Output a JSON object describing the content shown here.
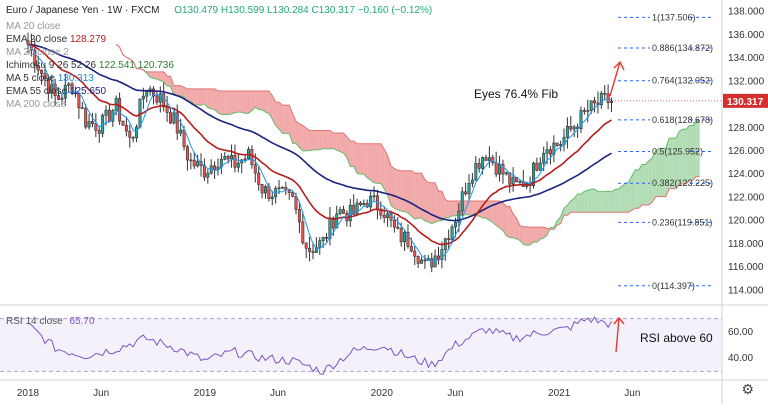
{
  "header": {
    "symbol": "Euro / Japanese Yen · 1W · FXCM",
    "ohlc": "O130.479 H130.599 L130.284 C130.317 −0.160 (−0.12%)",
    "indicators": [
      {
        "label": "MA 20 close",
        "value": "",
        "color": "#888888"
      },
      {
        "label": "EMA 20 close",
        "value": "128.279",
        "color": "#b71c1c"
      },
      {
        "label": "MA 20 close 2",
        "value": "",
        "color": "#888888"
      },
      {
        "label": "Ichimoku 9 26 52 26",
        "value": "122.541  120.736",
        "color": "#2e7d32"
      },
      {
        "label": "MA 5 close",
        "value": "130.313",
        "color": "#1e88e5"
      },
      {
        "label": "EMA 55 close",
        "value": "125.650",
        "color": "#1a237e"
      },
      {
        "label": "MA 200 close",
        "value": "",
        "color": "#888888"
      }
    ]
  },
  "annotations": {
    "fib_text": "Eyes 76.4% Fib",
    "rsi_text": "RSI above 60",
    "rsi_label": "RSI 14 close",
    "rsi_value": "65.70"
  },
  "colors": {
    "up_candle": "#26a69a",
    "down_candle": "#ef5350",
    "candle_body": "#333333",
    "ema20": "#b71c1c",
    "ema55": "#1a237e",
    "ma5": "#2196f3",
    "cloud_bull": "#a5d6a7",
    "cloud_bear": "#ef9a9a",
    "fib_line": "#2962ff",
    "price_tag": "#d32f2f",
    "rsi_line": "#7e57c2",
    "arrow": "#e53935"
  },
  "chart_data": {
    "type": "candlestick",
    "x_labels": [
      "2018",
      "Jun",
      "2019",
      "Jun",
      "2020",
      "Jun",
      "2021",
      "Jun"
    ],
    "ylim": [
      113,
      139
    ],
    "yticks": [
      "138.000",
      "136.000",
      "134.000",
      "132.000",
      "130.000",
      "128.000",
      "126.000",
      "124.000",
      "122.000",
      "120.000",
      "118.000",
      "116.000",
      "114.000"
    ],
    "last_price": "130.317",
    "close_path": [
      {
        "date": "2018-01-01",
        "value": 135.2
      },
      {
        "date": "2018-02-01",
        "value": 132.5
      },
      {
        "date": "2018-03-01",
        "value": 130.4
      },
      {
        "date": "2018-04-01",
        "value": 131.8
      },
      {
        "date": "2018-05-01",
        "value": 128.5
      },
      {
        "date": "2018-06-01",
        "value": 128.2
      },
      {
        "date": "2018-07-01",
        "value": 129.9
      },
      {
        "date": "2018-08-01",
        "value": 126.7
      },
      {
        "date": "2018-09-01",
        "value": 131.6
      },
      {
        "date": "2018-10-01",
        "value": 130.5
      },
      {
        "date": "2018-11-01",
        "value": 128.4
      },
      {
        "date": "2018-12-01",
        "value": 125.1
      },
      {
        "date": "2019-01-01",
        "value": 124.3
      },
      {
        "date": "2019-02-01",
        "value": 125.5
      },
      {
        "date": "2019-03-01",
        "value": 124.8
      },
      {
        "date": "2019-04-01",
        "value": 125.6
      },
      {
        "date": "2019-05-01",
        "value": 122.6
      },
      {
        "date": "2019-06-01",
        "value": 122.3
      },
      {
        "date": "2019-07-01",
        "value": 121.7
      },
      {
        "date": "2019-08-01",
        "value": 117.5
      },
      {
        "date": "2019-09-01",
        "value": 118.1
      },
      {
        "date": "2019-10-01",
        "value": 120.9
      },
      {
        "date": "2019-11-01",
        "value": 120.5
      },
      {
        "date": "2019-12-01",
        "value": 121.8
      },
      {
        "date": "2020-01-01",
        "value": 121.2
      },
      {
        "date": "2020-02-01",
        "value": 118.8
      },
      {
        "date": "2020-03-01",
        "value": 118.2
      },
      {
        "date": "2020-04-01",
        "value": 115.9
      },
      {
        "date": "2020-05-01",
        "value": 117.6
      },
      {
        "date": "2020-06-01",
        "value": 120.3
      },
      {
        "date": "2020-07-01",
        "value": 124.0
      },
      {
        "date": "2020-08-01",
        "value": 125.9
      },
      {
        "date": "2020-09-01",
        "value": 124.4
      },
      {
        "date": "2020-10-01",
        "value": 122.9
      },
      {
        "date": "2020-11-01",
        "value": 123.6
      },
      {
        "date": "2020-12-01",
        "value": 126.4
      },
      {
        "date": "2021-01-01",
        "value": 126.6
      },
      {
        "date": "2021-02-01",
        "value": 128.2
      },
      {
        "date": "2021-03-01",
        "value": 129.5
      },
      {
        "date": "2021-04-01",
        "value": 130.3
      }
    ],
    "fib_levels": [
      {
        "label": "1(137.506)",
        "value": 137.506
      },
      {
        "label": "0.886(134.872)",
        "value": 134.872
      },
      {
        "label": "0.764(132.052)",
        "value": 132.052
      },
      {
        "label": "0.618(128.678)",
        "value": 128.678
      },
      {
        "label": "0.5(125.952)",
        "value": 125.952
      },
      {
        "label": "0.382(123.225)",
        "value": 123.225
      },
      {
        "label": "0.236(119.851)",
        "value": 119.851
      },
      {
        "label": "0(114.397)",
        "value": 114.397
      }
    ],
    "rsi": {
      "ylim": [
        25,
        78
      ],
      "yticks": [
        "60.00",
        "40.00"
      ],
      "levels": [
        70,
        30
      ],
      "values": [
        {
          "date": "2018-01-01",
          "value": 65
        },
        {
          "date": "2018-03-01",
          "value": 47
        },
        {
          "date": "2018-05-01",
          "value": 42
        },
        {
          "date": "2018-07-01",
          "value": 47
        },
        {
          "date": "2018-09-01",
          "value": 55
        },
        {
          "date": "2018-11-01",
          "value": 48
        },
        {
          "date": "2019-01-01",
          "value": 38
        },
        {
          "date": "2019-03-01",
          "value": 45
        },
        {
          "date": "2019-05-01",
          "value": 40
        },
        {
          "date": "2019-07-01",
          "value": 38
        },
        {
          "date": "2019-09-01",
          "value": 30
        },
        {
          "date": "2019-11-01",
          "value": 45
        },
        {
          "date": "2020-01-01",
          "value": 50
        },
        {
          "date": "2020-03-01",
          "value": 40
        },
        {
          "date": "2020-04-15",
          "value": 35
        },
        {
          "date": "2020-06-01",
          "value": 50
        },
        {
          "date": "2020-08-01",
          "value": 62
        },
        {
          "date": "2020-10-01",
          "value": 55
        },
        {
          "date": "2020-12-01",
          "value": 60
        },
        {
          "date": "2021-01-15",
          "value": 62
        },
        {
          "date": "2021-03-01",
          "value": 70
        },
        {
          "date": "2021-04-15",
          "value": 66
        }
      ]
    }
  }
}
